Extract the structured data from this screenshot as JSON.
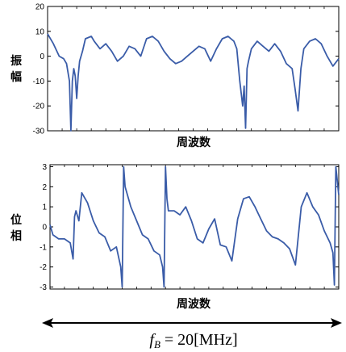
{
  "chart_data": [
    {
      "type": "line",
      "ylabel": "振幅",
      "xlabel": "周波数",
      "ylim": [
        -30,
        20
      ],
      "yticks": [
        "20",
        "10",
        "0",
        "-10",
        "-20",
        "-30"
      ],
      "x_range": [
        0,
        1
      ],
      "series": [
        {
          "color": "#3a5ca8",
          "x": [
            0,
            0.02,
            0.04,
            0.055,
            0.065,
            0.075,
            0.08,
            0.085,
            0.09,
            0.095,
            0.1,
            0.105,
            0.11,
            0.12,
            0.13,
            0.15,
            0.16,
            0.18,
            0.2,
            0.22,
            0.24,
            0.26,
            0.28,
            0.3,
            0.32,
            0.34,
            0.36,
            0.38,
            0.4,
            0.42,
            0.44,
            0.46,
            0.48,
            0.5,
            0.52,
            0.54,
            0.56,
            0.58,
            0.6,
            0.62,
            0.64,
            0.65,
            0.66,
            0.67,
            0.675,
            0.68,
            0.685,
            0.69,
            0.7,
            0.72,
            0.74,
            0.76,
            0.78,
            0.8,
            0.82,
            0.84,
            0.85,
            0.86,
            0.87,
            0.88,
            0.9,
            0.92,
            0.94,
            0.96,
            0.98,
            1.0
          ],
          "y": [
            9,
            5,
            0,
            -1,
            -3,
            -10,
            -30,
            -10,
            -5,
            -8,
            -17,
            -8,
            -2,
            2,
            7,
            8,
            6,
            3,
            5,
            2,
            -2,
            0,
            4,
            3,
            0,
            7,
            8,
            6,
            2,
            -1,
            -3,
            -2,
            0,
            2,
            4,
            3,
            -2,
            3,
            7,
            8,
            6,
            3,
            -10,
            -20,
            -12,
            -29,
            -5,
            -2,
            3,
            6,
            4,
            2,
            5,
            2,
            -3,
            -5,
            -13,
            -22,
            -5,
            3,
            6,
            7,
            5,
            0,
            -4,
            -1
          ]
        }
      ]
    },
    {
      "type": "line",
      "ylabel": "位相",
      "xlabel": "周波数",
      "ylim": [
        -3.1,
        3.1
      ],
      "yticks": [
        "3",
        "2",
        "1",
        "0",
        "-1",
        "-2",
        "-3"
      ],
      "x_range": [
        0,
        1
      ],
      "series": [
        {
          "color": "#3a5ca8",
          "x": [
            0,
            0.01,
            0.03,
            0.05,
            0.07,
            0.08,
            0.085,
            0.09,
            0.1,
            0.11,
            0.13,
            0.15,
            0.17,
            0.19,
            0.21,
            0.23,
            0.245,
            0.25,
            0.255,
            0.26,
            0.28,
            0.3,
            0.32,
            0.34,
            0.36,
            0.38,
            0.39,
            0.395,
            0.4,
            0.405,
            0.41,
            0.43,
            0.45,
            0.47,
            0.49,
            0.51,
            0.53,
            0.55,
            0.57,
            0.59,
            0.61,
            0.63,
            0.65,
            0.67,
            0.69,
            0.71,
            0.73,
            0.75,
            0.77,
            0.79,
            0.81,
            0.83,
            0.85,
            0.87,
            0.89,
            0.91,
            0.93,
            0.95,
            0.97,
            0.98,
            0.985,
            0.99,
            1.0
          ],
          "y": [
            0.1,
            -0.4,
            -0.6,
            -0.6,
            -0.8,
            -1.6,
            0.5,
            0.8,
            0.3,
            1.7,
            1.2,
            0.3,
            -0.3,
            -0.5,
            -1.2,
            -1.0,
            -2.0,
            -3.0,
            3.0,
            2.0,
            1.0,
            0.3,
            -0.4,
            -0.6,
            -1.2,
            -1.4,
            -2.0,
            -3.0,
            3.0,
            1.4,
            0.8,
            0.8,
            0.6,
            1.0,
            0.3,
            -0.6,
            -0.8,
            -0.1,
            0.4,
            -0.9,
            -1.0,
            -1.7,
            0.4,
            1.4,
            1.5,
            1.0,
            0.4,
            -0.2,
            -0.5,
            -0.6,
            -0.8,
            -1.1,
            -1.9,
            1.0,
            1.7,
            1.0,
            0.6,
            -0.2,
            -0.8,
            -1.3,
            -2.9,
            3.0,
            1.6
          ]
        }
      ]
    }
  ],
  "bandwidth_label": {
    "f": "f",
    "sub": "B",
    "rest": " = 20[MHz]"
  }
}
